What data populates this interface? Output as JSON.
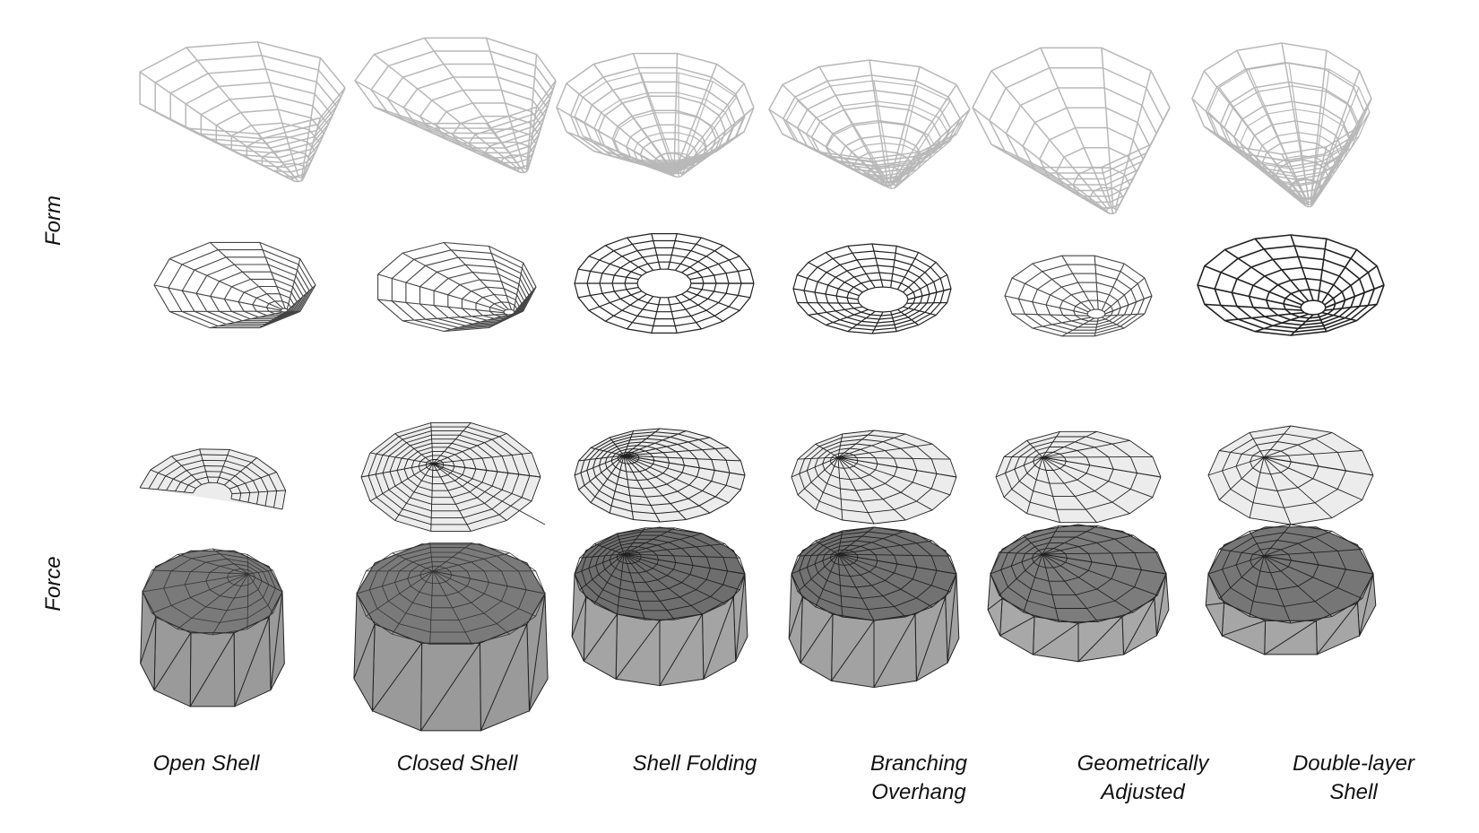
{
  "row_labels": {
    "form": "Form",
    "force": "Force"
  },
  "columns": [
    {
      "label": "Open Shell",
      "type": "open"
    },
    {
      "label": "Closed Shell",
      "type": "closed"
    },
    {
      "label": "Shell Folding",
      "type": "folding"
    },
    {
      "label": "Branching\nOverhang",
      "type": "branching"
    },
    {
      "label": "Geometrically\nAdjusted",
      "type": "adjusted"
    },
    {
      "label": "Double-layer\nShell",
      "type": "double"
    }
  ],
  "colors": {
    "form_3d": "#b8b8b8",
    "form_top": "#444444",
    "force_fill": "#ececec",
    "force_solid": "#9a9a9a",
    "edge": "#222222"
  }
}
